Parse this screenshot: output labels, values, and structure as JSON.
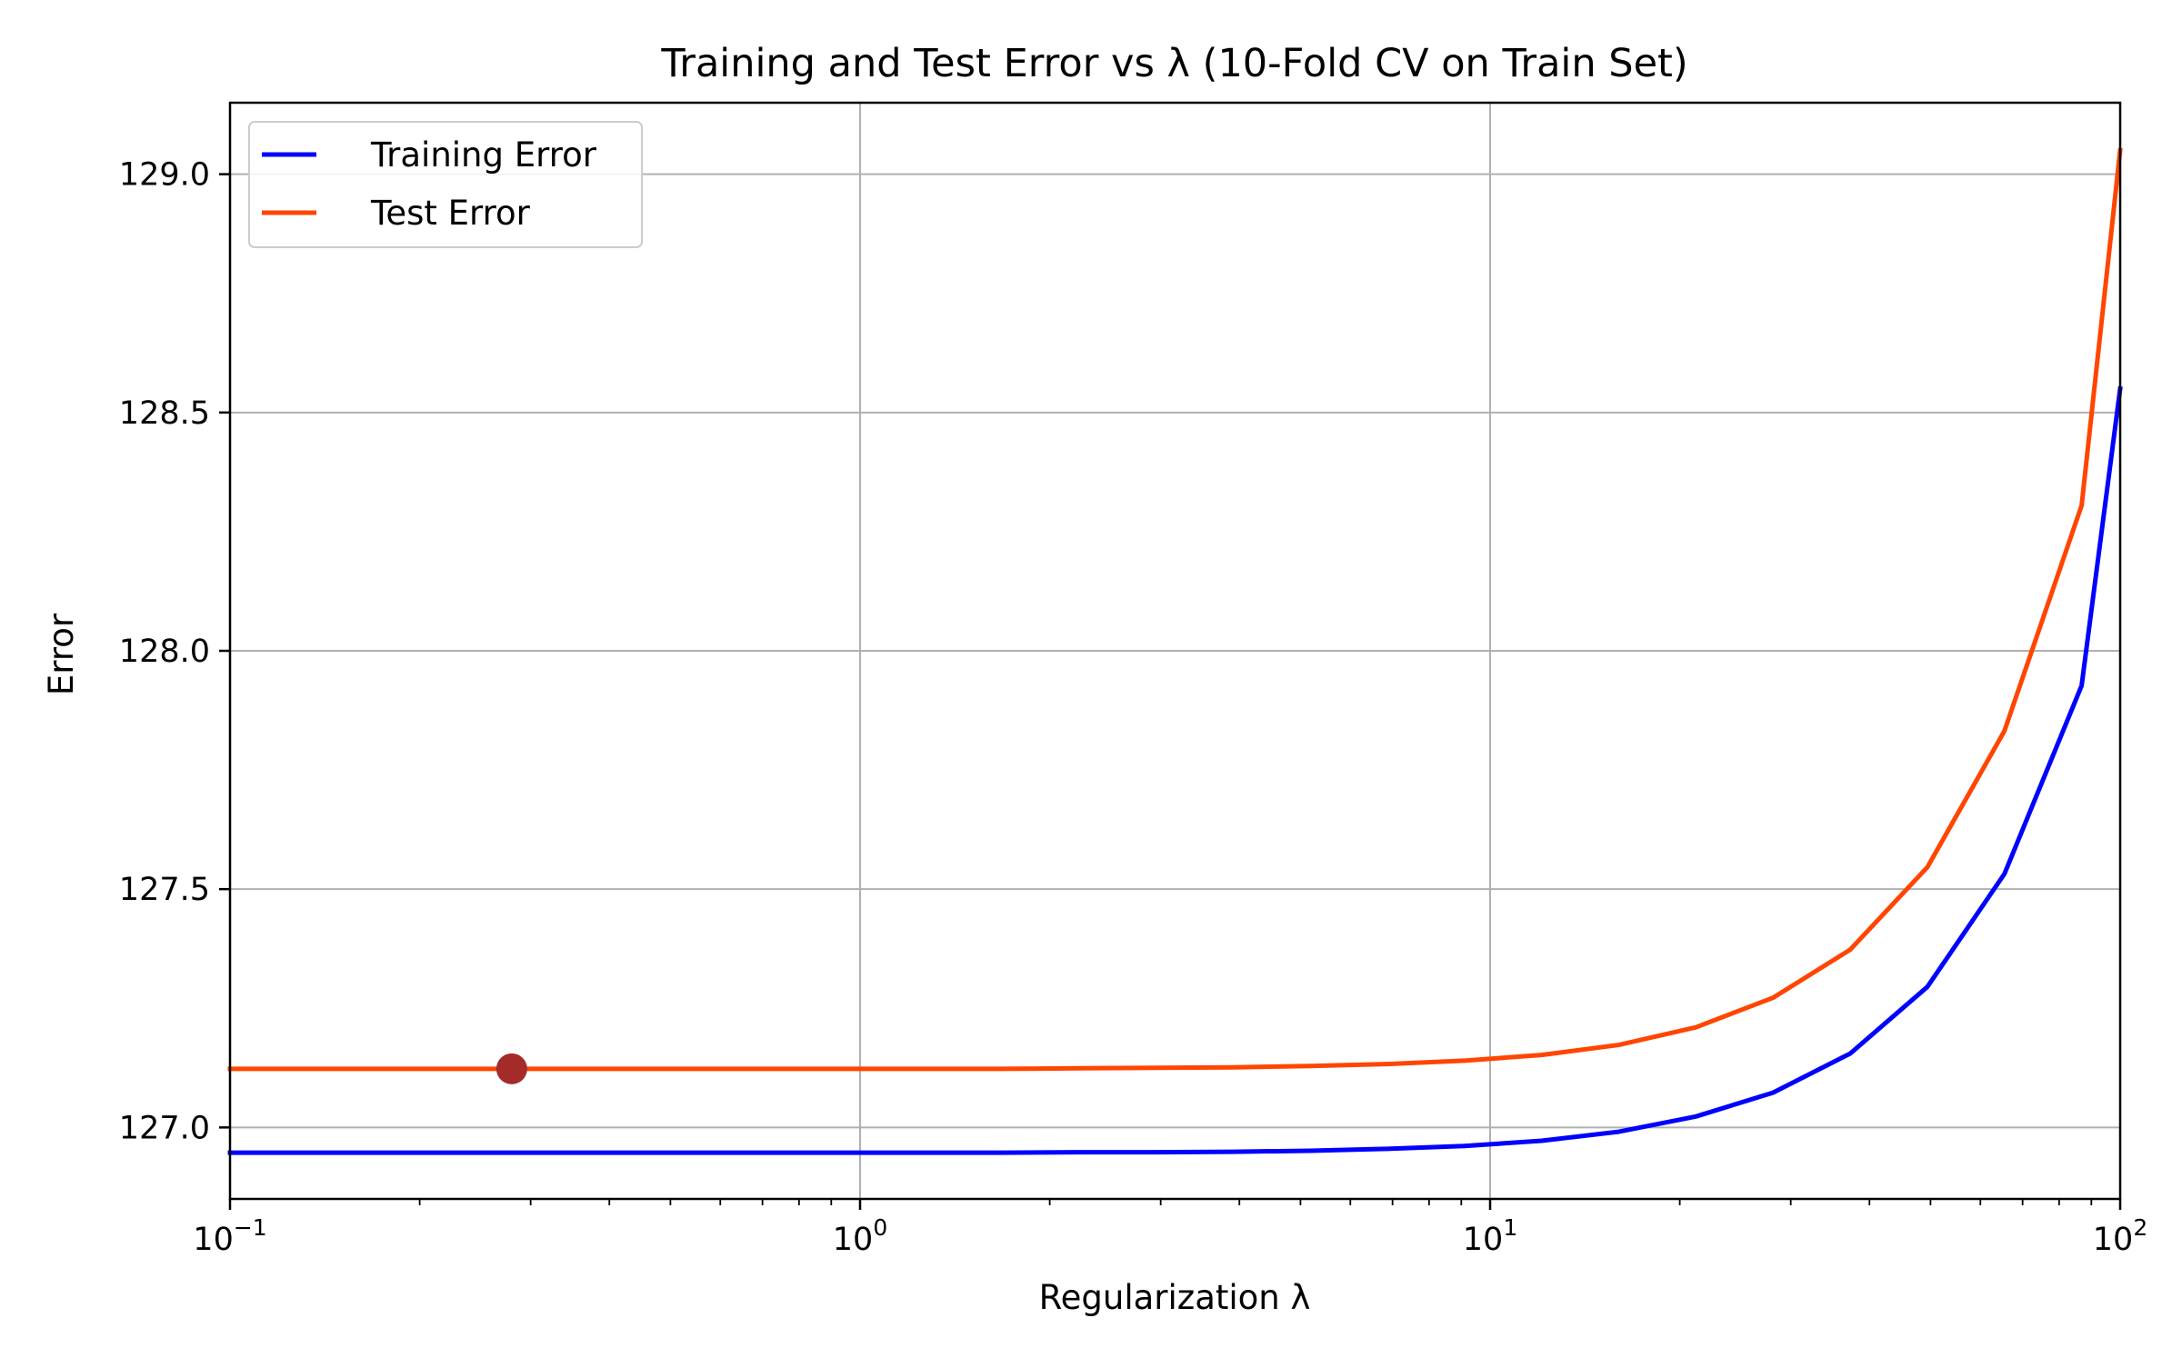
{
  "chart_data": {
    "type": "line",
    "title": "Training and Test Error vs λ (10-Fold CV on Train Set)",
    "xlabel": "Regularization λ",
    "ylabel": "Error",
    "xscale": "log",
    "xlim": [
      0.1,
      100
    ],
    "ylim": [
      126.85,
      129.15
    ],
    "grid": true,
    "legend_position": "top-left",
    "x_ticks": [
      {
        "base": "10",
        "exp": "−1",
        "value": 0.1
      },
      {
        "base": "10",
        "exp": "0",
        "value": 1
      },
      {
        "base": "10",
        "exp": "1",
        "value": 10
      },
      {
        "base": "10",
        "exp": "2",
        "value": 100
      }
    ],
    "y_ticks": [
      {
        "label": "127.0",
        "value": 127.0
      },
      {
        "label": "127.5",
        "value": 127.5
      },
      {
        "label": "128.0",
        "value": 128.0
      },
      {
        "label": "128.5",
        "value": 128.5
      },
      {
        "label": "129.0",
        "value": 129.0
      }
    ],
    "x": [
      0.1,
      0.1326,
      0.1758,
      0.233,
      0.3089,
      0.4095,
      0.5429,
      0.7197,
      0.9541,
      1.2649,
      1.6768,
      2.223,
      2.9471,
      3.9069,
      5.1795,
      6.8665,
      9.103,
      12.0679,
      15.9986,
      21.2095,
      28.1177,
      37.2759,
      49.4171,
      65.5129,
      86.8511,
      100
    ],
    "series": [
      {
        "name": "Training Error",
        "color": "#0000ff",
        "values": [
          126.947,
          126.947,
          126.947,
          126.947,
          126.947,
          126.947,
          126.947,
          126.947,
          126.947,
          126.947,
          126.947,
          126.948,
          126.948,
          126.949,
          126.951,
          126.955,
          126.961,
          126.972,
          126.991,
          127.023,
          127.073,
          127.155,
          127.295,
          127.532,
          127.927,
          128.55
        ]
      },
      {
        "name": "Test Error",
        "color": "#ff4500",
        "values": [
          127.123,
          127.123,
          127.123,
          127.123,
          127.123,
          127.123,
          127.123,
          127.123,
          127.123,
          127.123,
          127.123,
          127.124,
          127.125,
          127.126,
          127.129,
          127.133,
          127.14,
          127.152,
          127.173,
          127.21,
          127.272,
          127.373,
          127.546,
          127.832,
          128.305,
          129.05
        ]
      }
    ],
    "highlight_point": {
      "x": 0.28,
      "y": 127.123,
      "color": "#a52a2a"
    },
    "axis_color": "#000000",
    "grid_color": "#b0b0b0"
  }
}
